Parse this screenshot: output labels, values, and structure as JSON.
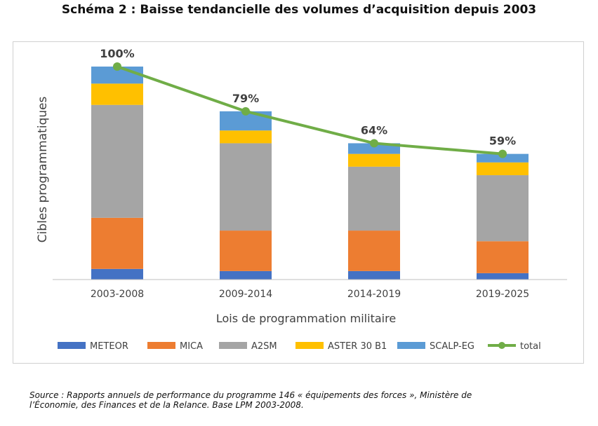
{
  "page": {
    "title": "Schéma 2 : Baisse tendancielle des volumes d’acquisition depuis 2003",
    "source_line1": "Source : Rapports annuels de performance du programme 146 « équipements des forces », Ministère de",
    "source_line2": "l’Économie, des Finances et de la Relance. Base LPM 2003-2008."
  },
  "chart_data": {
    "type": "bar",
    "stacked": true,
    "title": "Schéma 2 : Baisse tendancielle des volumes d’acquisition depuis 2003",
    "xlabel": "Lois de programmation militaire",
    "ylabel": "Cibles programmatiques",
    "categories": [
      "2003-2008",
      "2009-2014",
      "2014-2019",
      "2019-2025"
    ],
    "ylim": [
      0,
      100
    ],
    "y_unit": "% of 2003-2008 total (y-axis unlabeled)",
    "grid": false,
    "legend": "bottom",
    "series": [
      {
        "name": "METEOR",
        "color": "#4472C4",
        "values": [
          5,
          4,
          4,
          3
        ]
      },
      {
        "name": "MICA",
        "color": "#ED7D31",
        "values": [
          24,
          19,
          19,
          15
        ]
      },
      {
        "name": "A2SM",
        "color": "#A5A5A5",
        "values": [
          53,
          41,
          30,
          31
        ]
      },
      {
        "name": "ASTER 30 B1",
        "color": "#FFC000",
        "values": [
          10,
          6,
          6,
          6
        ]
      },
      {
        "name": "SCALP-EG",
        "color": "#5B9BD5",
        "values": [
          8,
          9,
          5,
          4
        ]
      }
    ],
    "line": {
      "name": "total",
      "color": "#70AD47",
      "values": [
        100,
        79,
        64,
        59
      ],
      "labels": [
        "100%",
        "79%",
        "64%",
        "59%"
      ]
    }
  }
}
